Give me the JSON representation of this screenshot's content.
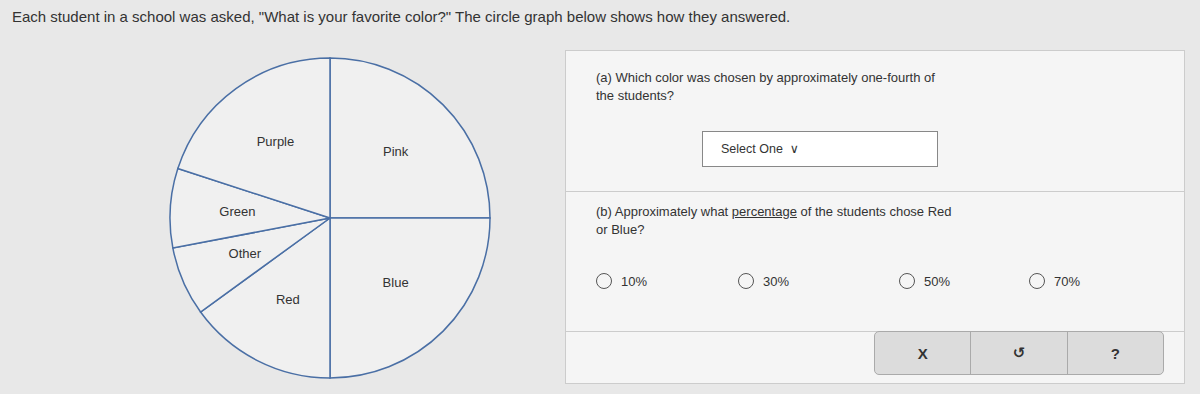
{
  "chart_data": {
    "type": "pie",
    "title": "Each student in a school was asked, \"What is your favorite color?\" The circle graph below shows how they answered.",
    "categories": [
      "Pink",
      "Blue",
      "Red",
      "Other",
      "Green",
      "Purple"
    ],
    "values": [
      25,
      25,
      15,
      7,
      8,
      20
    ],
    "colors": [
      "#f0f0f0",
      "#f0f0f0",
      "#f0f0f0",
      "#f0f0f0",
      "#f0f0f0",
      "#f0f0f0"
    ],
    "annotations": [
      "(a) Which color was chosen by approximately one-fourth of\nthe students?",
      "Select One  ∨",
      "(b) Approximately what ",
      "percentage",
      " of the students chose Red\nor Blue?",
      "10%",
      "30%",
      "50%",
      "70%",
      "X",
      "↺",
      "?"
    ]
  }
}
